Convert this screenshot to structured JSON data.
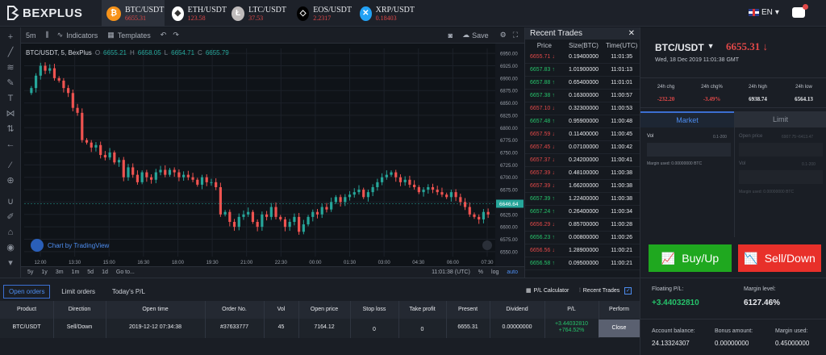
{
  "brand": {
    "name": "BEXPLUS"
  },
  "tickers": [
    {
      "name": "BTC/USDT",
      "price": "6655.31",
      "icon": "bitcoin-icon",
      "color": "#f7931a",
      "glyph": "₿"
    },
    {
      "name": "ETH/USDT",
      "price": "123.58",
      "icon": "ethereum-icon",
      "color": "#ffffff",
      "glyph": "◆"
    },
    {
      "name": "LTC/USDT",
      "price": "37.53",
      "icon": "litecoin-icon",
      "color": "#bfbbbb",
      "glyph": "Ł"
    },
    {
      "name": "EOS/USDT",
      "price": "2.2317",
      "icon": "eos-icon",
      "color": "#000000",
      "glyph": "◇"
    },
    {
      "name": "XRP/USDT",
      "price": "0.18403",
      "icon": "xrp-icon",
      "color": "#23a2f5",
      "glyph": "✕"
    }
  ],
  "language": "EN",
  "chart_toolbar": {
    "interval": "5m",
    "indicators": "Indicators",
    "templates": "Templates",
    "save": "Save"
  },
  "chart_legend": {
    "symbol": "BTC/USDT, 5, BexPlus",
    "o": "6655.21",
    "h": "6658.05",
    "l": "6654.71",
    "c": "6655.79"
  },
  "chart_watermark": "Chart by TradingView",
  "chart_bottom": {
    "ranges": [
      "5y",
      "1y",
      "3m",
      "1m",
      "5d",
      "1d",
      "Go to..."
    ],
    "time": "11:01:38 (UTC)",
    "pct": "%",
    "log": "log",
    "auto": "auto"
  },
  "chart_data": {
    "type": "candlestick",
    "x": [
      "12:00",
      "13:30",
      "15:00",
      "16:30",
      "18:00",
      "19:30",
      "21:00",
      "22:30",
      "00:00",
      "01:30",
      "03:00",
      "04:30",
      "06:00",
      "07:30"
    ],
    "yticks": [
      "6950.00",
      "6925.00",
      "6900.00",
      "6875.00",
      "6850.00",
      "6825.00",
      "6800.00",
      "6775.00",
      "6750.00",
      "6725.00",
      "6700.00",
      "6675.00",
      "6650.00",
      "6625.00",
      "6600.00",
      "6575.00",
      "6550.00"
    ],
    "ylim": [
      6540,
      6960
    ],
    "last_price": "6646.64",
    "closes": [
      6880,
      6905,
      6925,
      6915,
      6920,
      6900,
      6895,
      6880,
      6870,
      6840,
      6830,
      6775,
      6770,
      6760,
      6765,
      6745,
      6740,
      6750,
      6730,
      6735,
      6700,
      6720,
      6705,
      6690,
      6710,
      6700,
      6695,
      6710,
      6715,
      6705,
      6715,
      6710,
      6700,
      6705,
      6700,
      6695,
      6685,
      6700,
      6690,
      6690,
      6680,
      6625,
      6630,
      6610,
      6600,
      6620,
      6625,
      6630,
      6610,
      6600,
      6625,
      6620,
      6640,
      6620,
      6615,
      6600,
      6610,
      6620,
      6590,
      6605,
      6620,
      6630,
      6625,
      6640,
      6635,
      6650,
      6660,
      6650,
      6660,
      6665,
      6670,
      6675,
      6660,
      6670,
      6680,
      6690,
      6700,
      6705,
      6710,
      6700,
      6690,
      6695,
      6685,
      6680,
      6670,
      6675,
      6680,
      6675,
      6670,
      6665,
      6660,
      6670,
      6660,
      6650,
      6640,
      6625,
      6620,
      6615,
      6630,
      6625
    ]
  },
  "recent_trades": {
    "title": "Recent Trades",
    "columns": [
      "Price",
      "Size(BTC)",
      "Time(UTC)"
    ],
    "rows": [
      {
        "price": "6655.71",
        "dir": "down",
        "size": "0.19400000",
        "time": "11:01:35"
      },
      {
        "price": "6657.83",
        "dir": "up",
        "size": "1.01900000",
        "time": "11:01:13"
      },
      {
        "price": "6657.88",
        "dir": "up",
        "size": "0.65400000",
        "time": "11:01:01"
      },
      {
        "price": "6657.38",
        "dir": "up",
        "size": "0.16300000",
        "time": "11:00:57"
      },
      {
        "price": "6657.10",
        "dir": "down",
        "size": "0.32300000",
        "time": "11:00:53"
      },
      {
        "price": "6657.48",
        "dir": "up",
        "size": "0.95900000",
        "time": "11:00:48"
      },
      {
        "price": "6657.59",
        "dir": "down",
        "size": "0.11400000",
        "time": "11:00:45"
      },
      {
        "price": "6657.45",
        "dir": "down",
        "size": "0.07100000",
        "time": "11:00:42"
      },
      {
        "price": "6657.37",
        "dir": "down",
        "size": "0.24200000",
        "time": "11:00:41"
      },
      {
        "price": "6657.39",
        "dir": "down",
        "size": "0.48100000",
        "time": "11:00:38"
      },
      {
        "price": "6657.39",
        "dir": "down",
        "size": "1.66200000",
        "time": "11:00:38"
      },
      {
        "price": "6657.39",
        "dir": "up",
        "size": "1.22400000",
        "time": "11:00:38"
      },
      {
        "price": "6657.24",
        "dir": "up",
        "size": "0.26400000",
        "time": "11:00:34"
      },
      {
        "price": "6656.29",
        "dir": "down",
        "size": "0.85700000",
        "time": "11:00:28"
      },
      {
        "price": "6656.23",
        "dir": "up",
        "size": "0.00800000",
        "time": "11:00:26"
      },
      {
        "price": "6656.56",
        "dir": "down",
        "size": "1.28900000",
        "time": "11:00:21"
      },
      {
        "price": "6656.58",
        "dir": "up",
        "size": "0.09500000",
        "time": "11:00:21"
      }
    ]
  },
  "market": {
    "pair": "BTC/USDT",
    "price": "6655.31",
    "arrow": "↓",
    "date": "Wed, 18 Dec 2019 11:01:38 GMT",
    "stats": [
      {
        "label": "24h chg",
        "value": "-232.20",
        "color": "#e04848"
      },
      {
        "label": "24h chg%",
        "value": "-3.49%",
        "color": "#e04848"
      },
      {
        "label": "24h high",
        "value": "6938.74",
        "color": "#e8eaee"
      },
      {
        "label": "24h low",
        "value": "6564.13",
        "color": "#e8eaee"
      }
    ],
    "tabs": [
      "Market",
      "Limit"
    ],
    "vol_label": "Vol",
    "vol_hint": "0.1-200",
    "margin_used": "Margin used: 0.00000000 BTC",
    "open_price_label": "Open price",
    "open_price_hint": "6907.75~6413.47",
    "limit_vol_label": "Vol",
    "limit_vol_hint": "0.1-200",
    "limit_margin": "Margin used: 0.00000000 BTC",
    "buy": "Buy/Up",
    "sell": "Sell/Down"
  },
  "positions": {
    "tabs": [
      "Open orders",
      "Limit orders",
      "Today's P/L"
    ],
    "calc": "P/L Calculator",
    "recent_toggle": "Recent Trades",
    "columns": [
      "Product",
      "Direction",
      "Open time",
      "Order No.",
      "Vol",
      "Open price",
      "Stop loss",
      "Take profit",
      "Present",
      "Dividend",
      "P/L",
      "Perform"
    ],
    "row": {
      "product": "BTC/USDT",
      "direction": "Sell/Down",
      "open_time": "2019-12-12 07:34:38",
      "order_no": "#37633777",
      "vol": "45",
      "open_price": "7164.12",
      "stop_loss": "0",
      "take_profit": "0",
      "present": "6655.31",
      "dividend": "0.00000000",
      "pl": "+3.44032810",
      "pl_pct": "+764.52%",
      "action": "Close"
    }
  },
  "account": {
    "floating_label": "Floating P/L:",
    "floating": "+3.44032810",
    "margin_level_label": "Margin level:",
    "margin_level": "6127.46%",
    "balance_label": "Account balance:",
    "balance": "24.13324307",
    "bonus_label": "Bonus amount:",
    "bonus": "0.00000000",
    "margin_used_label": "Margin used:",
    "margin_used": "0.45000000"
  },
  "colors": {
    "up": "#26a69a",
    "down": "#ef5350",
    "buy": "#1fa81f",
    "sell": "#e8302a",
    "accent": "#3b6fd1"
  }
}
